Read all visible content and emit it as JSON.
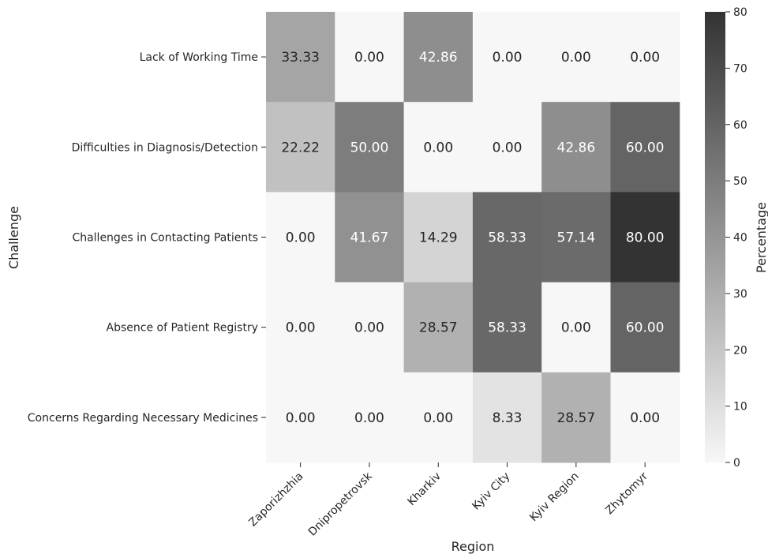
{
  "chart_data": {
    "type": "heatmap",
    "title": "",
    "xlabel": "Region",
    "ylabel": "Challenge",
    "x_categories": [
      "Zaporizhzhia",
      "Dnipropetrovsk",
      "Kharkiv",
      "Kyiv City",
      "Kyiv Region",
      "Zhytomyr"
    ],
    "y_categories": [
      "Lack of Working Time",
      "Difficulties in Diagnosis/Detection",
      "Challenges in Contacting Patients",
      "Absence of Patient Registry",
      "Concerns Regarding Necessary Medicines"
    ],
    "values": [
      [
        33.33,
        0.0,
        42.86,
        0.0,
        0.0,
        0.0
      ],
      [
        22.22,
        50.0,
        0.0,
        0.0,
        42.86,
        60.0
      ],
      [
        0.0,
        41.67,
        14.29,
        58.33,
        57.14,
        80.0
      ],
      [
        0.0,
        0.0,
        28.57,
        58.33,
        0.0,
        60.0
      ],
      [
        0.0,
        0.0,
        0.0,
        8.33,
        28.57,
        0.0
      ]
    ],
    "value_format": "0.00",
    "colorbar": {
      "label": "Percentage",
      "range": [
        0,
        80
      ],
      "ticks": [
        0,
        10,
        20,
        30,
        40,
        50,
        60,
        70,
        80
      ]
    },
    "colors": {
      "low": "#f7f7f7",
      "high": "#333333",
      "text_dark": "#262626",
      "text_light": "#ffffff"
    }
  }
}
